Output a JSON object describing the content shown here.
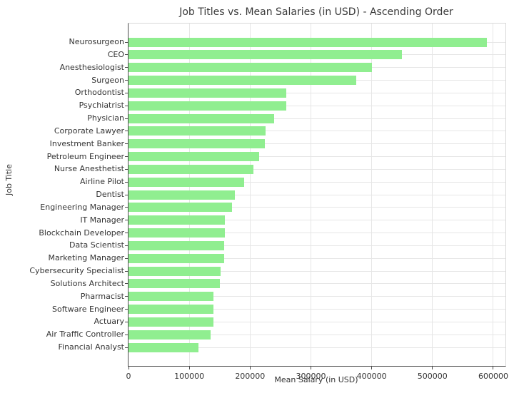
{
  "chart_data": {
    "type": "bar",
    "orientation": "horizontal",
    "title": "Job Titles vs. Mean Salaries (in USD) - Ascending Order",
    "xlabel": "Mean Salary (in USD)",
    "ylabel": "Job Title",
    "sort_order": "ascending from bottom to top",
    "bar_color": "#90EE90",
    "grid": true,
    "grid_color": "#e6e6e6",
    "xlim": [
      0,
      620000
    ],
    "x_ticks": [
      0,
      100000,
      200000,
      300000,
      400000,
      500000,
      600000
    ],
    "x_tick_labels": [
      "0",
      "100000",
      "200000",
      "300000",
      "400000",
      "500000",
      "600000"
    ],
    "categories_top_to_bottom": [
      "Neurosurgeon",
      "CEO",
      "Anesthesiologist",
      "Surgeon",
      "Orthodontist",
      "Psychiatrist",
      "Physician",
      "Corporate Lawyer",
      "Investment Banker",
      "Petroleum Engineer",
      "Nurse Anesthetist",
      "Airline Pilot",
      "Dentist",
      "Engineering Manager",
      "IT Manager",
      "Blockchain Developer",
      "Data Scientist",
      "Marketing Manager",
      "Cybersecurity Specialist",
      "Solutions Architect",
      "Pharmacist",
      "Software Engineer",
      "Actuary",
      "Air Traffic Controller",
      "Financial Analyst"
    ],
    "values_top_to_bottom": [
      590000,
      450000,
      400000,
      375000,
      260000,
      259000,
      240000,
      225000,
      224000,
      215000,
      205000,
      190000,
      175000,
      170000,
      159000,
      159000,
      157000,
      157000,
      151000,
      150000,
      140000,
      140000,
      140000,
      135000,
      115000
    ]
  }
}
